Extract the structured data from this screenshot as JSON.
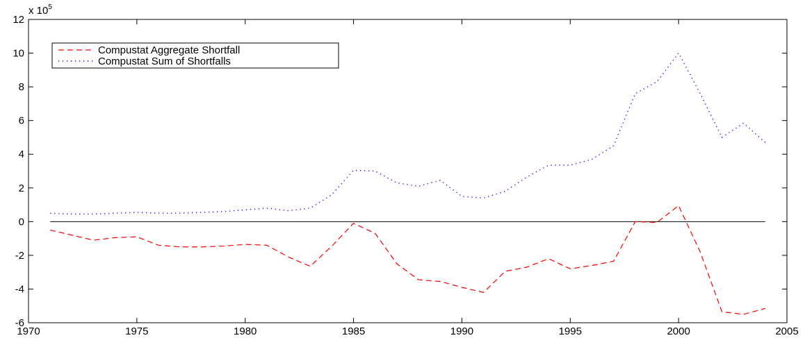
{
  "chart_data": {
    "type": "line",
    "title": "",
    "xlabel": "",
    "ylabel": "",
    "y_multiplier_label": {
      "base": "x 10",
      "exponent": "5"
    },
    "xlim": [
      1970,
      2005
    ],
    "ylim": [
      -6,
      12
    ],
    "x_ticks": [
      1970,
      1975,
      1980,
      1985,
      1990,
      1995,
      2000,
      2005
    ],
    "y_ticks": [
      -6,
      -4,
      -2,
      0,
      2,
      4,
      6,
      8,
      10,
      12
    ],
    "grid": false,
    "legend_position": "top-left",
    "zero_line": true,
    "x": [
      1971,
      1972,
      1973,
      1974,
      1975,
      1976,
      1977,
      1978,
      1979,
      1980,
      1981,
      1982,
      1983,
      1984,
      1985,
      1986,
      1987,
      1988,
      1989,
      1990,
      1991,
      1992,
      1993,
      1994,
      1995,
      1996,
      1997,
      1998,
      1999,
      2000,
      2001,
      2002,
      2003,
      2004
    ],
    "series": [
      {
        "name": "Compustat Aggregate Shortfall",
        "color": "#ff0000",
        "style": "dashed",
        "values": [
          -0.5,
          -0.8,
          -1.1,
          -0.95,
          -0.9,
          -1.4,
          -1.5,
          -1.5,
          -1.45,
          -1.35,
          -1.4,
          -2.1,
          -2.65,
          -1.45,
          -0.1,
          -0.7,
          -2.5,
          -3.45,
          -3.55,
          -3.9,
          -4.2,
          -2.95,
          -2.7,
          -2.2,
          -2.8,
          -2.6,
          -2.35,
          0.0,
          -0.05,
          0.95,
          -1.8,
          -5.35,
          -5.5,
          -5.15
        ]
      },
      {
        "name": "Compustat Sum of Shortfalls",
        "color": "#0000ff",
        "style": "dotted",
        "values": [
          0.5,
          0.45,
          0.45,
          0.5,
          0.55,
          0.5,
          0.5,
          0.55,
          0.6,
          0.7,
          0.8,
          0.65,
          0.8,
          1.6,
          3.05,
          3.0,
          2.3,
          2.1,
          2.45,
          1.5,
          1.4,
          1.8,
          2.65,
          3.35,
          3.35,
          3.7,
          4.5,
          7.6,
          8.3,
          10.0,
          7.6,
          5.0,
          5.85,
          4.7
        ]
      }
    ]
  }
}
